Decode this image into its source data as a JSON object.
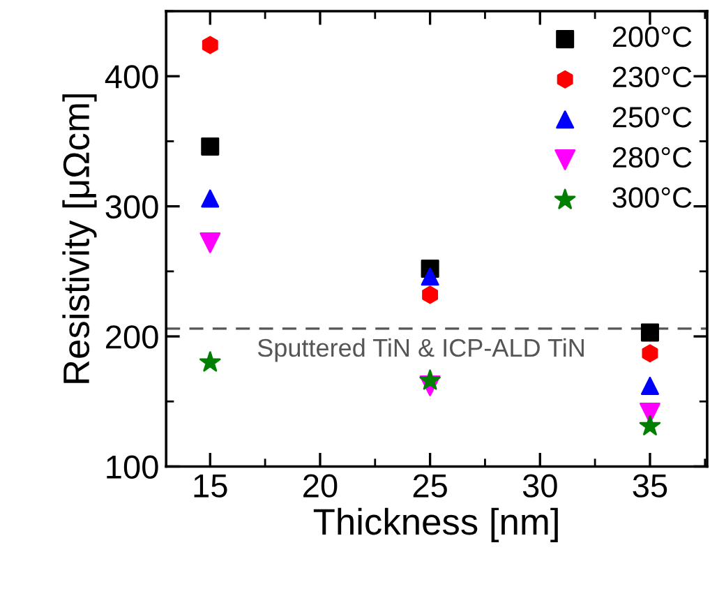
{
  "chart_data": {
    "type": "scatter",
    "xlabel": "Thickness [nm]",
    "ylabel": "Resistivity [μΩcm]",
    "x": [
      15,
      25,
      35
    ],
    "series": [
      {
        "name": "200°C",
        "color": "#000000",
        "marker": "square",
        "values": [
          346,
          252,
          203
        ]
      },
      {
        "name": "230°C",
        "color": "#ff0000",
        "marker": "circle",
        "values": [
          424,
          232,
          187
        ]
      },
      {
        "name": "250°C",
        "color": "#0000ff",
        "marker": "triangle",
        "values": [
          306,
          246,
          162
        ]
      },
      {
        "name": "280°C",
        "color": "#ff00ff",
        "marker": "triangle_down",
        "values": [
          272,
          162,
          141
        ]
      },
      {
        "name": "300°C",
        "color": "#007f00",
        "marker": "star",
        "values": [
          180,
          166,
          131
        ]
      }
    ],
    "xlim": [
      13,
      37.6
    ],
    "ylim": [
      100,
      450
    ],
    "xticks": [
      15,
      20,
      25,
      30,
      35
    ],
    "yticks": [
      100,
      200,
      300,
      400
    ],
    "ref_lines": [
      {
        "axis": "y",
        "value": 206,
        "label": "Sputtered TiN & ICP-ALD TiN",
        "color": "#555555",
        "line_style": "dashed"
      }
    ],
    "legend": "top right",
    "grid": false
  }
}
